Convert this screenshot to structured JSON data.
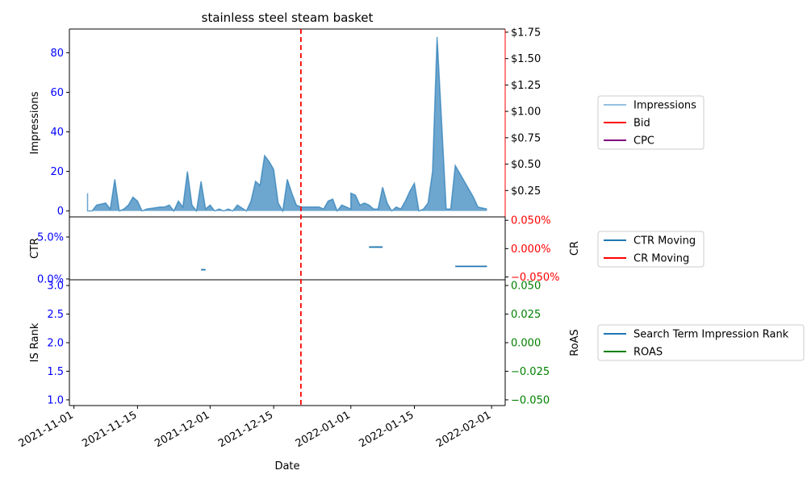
{
  "chart_data": [
    {
      "type": "area",
      "title": "stainless steel steam basket",
      "ylabel": "Impressions",
      "y2label": "",
      "ylim": [
        -3,
        92
      ],
      "y2lim": [
        0.0,
        1.78
      ],
      "yticks": [
        0,
        20,
        40,
        60,
        80
      ],
      "yticklabels": [
        "0",
        "20",
        "40",
        "60",
        "80"
      ],
      "y2ticks": [
        0.25,
        0.5,
        0.75,
        1.0,
        1.25,
        1.5,
        1.75
      ],
      "y2ticklabels": [
        "$0.25",
        "$0.50",
        "$0.75",
        "$1.00",
        "$1.25",
        "$1.50",
        "$1.75"
      ],
      "legend": [
        "Impressions",
        "Bid",
        "CPC"
      ],
      "legend_placement": "right",
      "series": [
        {
          "name": "Impressions",
          "color": "#5b9fd0",
          "points": [
            [
              "2021-11-04",
              9
            ],
            [
              "2021-11-04",
              0
            ],
            [
              "2021-11-05",
              0
            ],
            [
              "2021-11-06",
              3
            ],
            [
              "2021-11-08",
              4
            ],
            [
              "2021-11-09",
              1
            ],
            [
              "2021-11-10",
              16
            ],
            [
              "2021-11-11",
              0
            ],
            [
              "2021-11-12",
              1
            ],
            [
              "2021-11-13",
              3
            ],
            [
              "2021-11-14",
              7
            ],
            [
              "2021-11-15",
              5
            ],
            [
              "2021-11-16",
              0
            ],
            [
              "2021-11-17",
              1
            ],
            [
              "2021-11-20",
              2
            ],
            [
              "2021-11-21",
              2
            ],
            [
              "2021-11-22",
              3
            ],
            [
              "2021-11-23",
              0
            ],
            [
              "2021-11-24",
              5
            ],
            [
              "2021-11-25",
              2
            ],
            [
              "2021-11-26",
              20
            ],
            [
              "2021-11-27",
              3
            ],
            [
              "2021-11-28",
              0
            ],
            [
              "2021-11-29",
              15
            ],
            [
              "2021-11-30",
              1
            ],
            [
              "2021-12-01",
              3
            ],
            [
              "2021-12-02",
              0
            ],
            [
              "2021-12-03",
              1
            ],
            [
              "2021-12-04",
              0
            ],
            [
              "2021-12-05",
              1
            ],
            [
              "2021-12-06",
              0
            ],
            [
              "2021-12-07",
              3
            ],
            [
              "2021-12-09",
              0
            ],
            [
              "2021-12-10",
              5
            ],
            [
              "2021-12-11",
              15
            ],
            [
              "2021-12-12",
              13
            ],
            [
              "2021-12-13",
              28
            ],
            [
              "2021-12-14",
              25
            ],
            [
              "2021-12-15",
              21
            ],
            [
              "2021-12-16",
              4
            ],
            [
              "2021-12-17",
              0
            ],
            [
              "2021-12-18",
              16
            ],
            [
              "2021-12-19",
              9
            ],
            [
              "2021-12-20",
              3
            ],
            [
              "2021-12-21",
              2
            ],
            [
              "2021-12-22",
              2
            ],
            [
              "2021-12-25",
              2
            ],
            [
              "2021-12-26",
              1
            ],
            [
              "2021-12-27",
              5
            ],
            [
              "2021-12-28",
              6
            ],
            [
              "2021-12-29",
              0
            ],
            [
              "2021-12-30",
              3
            ],
            [
              "2021-12-31",
              2
            ],
            [
              "2022-01-01",
              1
            ],
            [
              "2022-01-01",
              9
            ],
            [
              "2022-01-02",
              8
            ],
            [
              "2022-01-03",
              3
            ],
            [
              "2022-01-04",
              4
            ],
            [
              "2022-01-05",
              3
            ],
            [
              "2022-01-06",
              1
            ],
            [
              "2022-01-07",
              1
            ],
            [
              "2022-01-08",
              12
            ],
            [
              "2022-01-09",
              4
            ],
            [
              "2022-01-10",
              0
            ],
            [
              "2022-01-11",
              2
            ],
            [
              "2022-01-12",
              1
            ],
            [
              "2022-01-13",
              5
            ],
            [
              "2022-01-14",
              10
            ],
            [
              "2022-01-15",
              14
            ],
            [
              "2022-01-16",
              0
            ],
            [
              "2022-01-17",
              1
            ],
            [
              "2022-01-18",
              4
            ],
            [
              "2022-01-19",
              20
            ],
            [
              "2022-01-20",
              88
            ],
            [
              "2022-01-21",
              45
            ],
            [
              "2022-01-22",
              1
            ],
            [
              "2022-01-23",
              1
            ],
            [
              "2022-01-24",
              23
            ],
            [
              "2022-01-25",
              19
            ],
            [
              "2022-01-26",
              15
            ],
            [
              "2022-01-27",
              11
            ],
            [
              "2022-01-28",
              7
            ],
            [
              "2022-01-29",
              2
            ],
            [
              "2022-01-31",
              1
            ]
          ]
        },
        {
          "name": "Bid",
          "color": "#ff0000",
          "points": []
        },
        {
          "name": "CPC",
          "color": "#800080",
          "points": []
        }
      ]
    },
    {
      "type": "line",
      "ylabel": "CTR",
      "y2label": "CR",
      "ylim": [
        -0.1,
        7.4
      ],
      "y2lim": [
        -0.055,
        0.056
      ],
      "yticks": [
        0,
        5
      ],
      "yticklabels": [
        "0.0%",
        "5.0%"
      ],
      "y2ticks": [
        -0.05,
        0.0,
        0.05
      ],
      "y2ticklabels": [
        "−0.050%",
        "0.000%",
        "0.050%"
      ],
      "legend": [
        "CTR Moving",
        "CR Moving"
      ],
      "legend_placement": "right",
      "series": [
        {
          "name": "CTR Moving",
          "color": "#1f77b4",
          "segments": [
            [
              [
                "2021-11-29",
                1.1
              ],
              [
                "2021-11-30",
                1.1
              ]
            ],
            [
              [
                "2022-01-05",
                3.8
              ],
              [
                "2022-01-08",
                3.8
              ]
            ],
            [
              [
                "2022-01-24",
                1.5
              ],
              [
                "2022-01-31",
                1.5
              ]
            ]
          ]
        },
        {
          "name": "CR Moving",
          "color": "#ff0000",
          "segments": []
        }
      ]
    },
    {
      "type": "line",
      "ylabel": "IS Rank",
      "y2label": "RoAS",
      "ylim": [
        0.9,
        3.1
      ],
      "y2lim": [
        -0.055,
        0.055
      ],
      "yticks": [
        1.0,
        1.5,
        2.0,
        2.5,
        3.0
      ],
      "yticklabels": [
        "1.0",
        "1.5",
        "2.0",
        "2.5",
        "3.0"
      ],
      "y2ticks": [
        -0.05,
        -0.025,
        0.0,
        0.025,
        0.05
      ],
      "y2ticklabels": [
        "−0.050",
        "−0.025",
        "0.000",
        "0.025",
        "0.050"
      ],
      "legend": [
        "Search Term Impression Rank",
        "ROAS"
      ],
      "legend_placement": "right",
      "series": [
        {
          "name": "Search Term Impression Rank",
          "color": "#1f77b4",
          "points": []
        },
        {
          "name": "ROAS",
          "color": "#008000",
          "points": []
        }
      ]
    }
  ],
  "xaxis": {
    "label": "Date",
    "range": [
      "2021-10-31",
      "2022-02-04"
    ],
    "ticks": [
      "2021-11-01",
      "2021-11-15",
      "2021-12-01",
      "2021-12-15",
      "2022-01-01",
      "2022-01-15",
      "2022-02-01"
    ],
    "ticklabels": [
      "2021-11-01",
      "2021-11-15",
      "2021-12-01",
      "2021-12-15",
      "2022-01-01",
      "2022-01-15",
      "2022-02-01"
    ]
  },
  "vline": {
    "x": "2021-12-21",
    "color": "#ff0000",
    "style": "dashed"
  },
  "colors": {
    "left_tick_color": "#0000ff",
    "impressions_right_tick_color": "#000000",
    "impressions_right_spine_color": "#ff0000",
    "cr_tick_color": "#ff0000",
    "roas_tick_color": "#008000"
  }
}
